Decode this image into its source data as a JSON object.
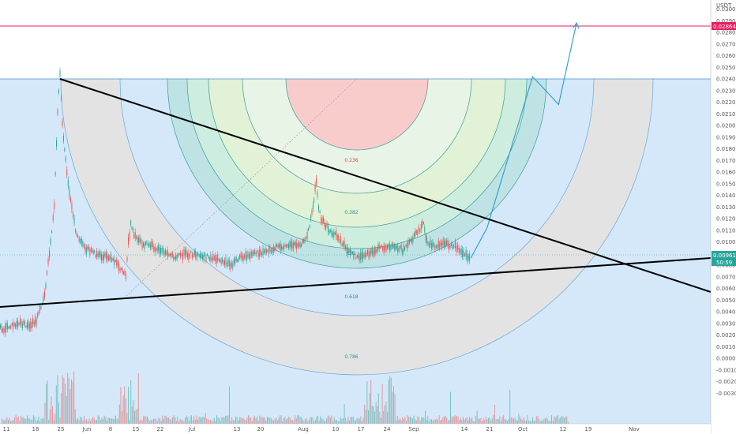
{
  "chart_data": {
    "type": "line",
    "currency_label": "USDT",
    "x_ticks": [
      "11",
      "18",
      "25",
      "Jun",
      "8",
      "15",
      "22",
      "Jul",
      "13",
      "20",
      "Aug",
      "10",
      "17",
      "24",
      "Sep",
      "14",
      "21",
      "Oct",
      "12",
      "19",
      "Nov"
    ],
    "y_ticks": [
      "0.030000",
      "0.029000",
      "0.028000",
      "0.027000",
      "0.026000",
      "0.025000",
      "0.024000",
      "0.023000",
      "0.022000",
      "0.021000",
      "0.020000",
      "0.019000",
      "0.018000",
      "0.017000",
      "0.016000",
      "0.015000",
      "0.014000",
      "0.013000",
      "0.012000",
      "0.011000",
      "0.010000",
      "0.009000",
      "0.008000",
      "0.007000",
      "0.006000",
      "0.005000",
      "0.004000",
      "0.003000",
      "0.002000",
      "0.001000",
      "0.000000",
      "-0.001000",
      "-0.002000",
      "-0.003000"
    ],
    "ylim": [
      -0.0035,
      0.0305
    ],
    "price_tag": "0.009613",
    "countdown_tag": "50:59",
    "target_tag": "0.028640",
    "fib_levels": [
      "0.236",
      "0.382",
      "0.5",
      "0.618",
      "0.786"
    ],
    "colors": {
      "candle_up": "#26a69a",
      "candle_down": "#ef5350",
      "target_line": "#e91e63",
      "projection": "#2a9bd4",
      "trendline": "#000000"
    },
    "price_path": [
      [
        0.0,
        0.0026
      ],
      [
        0.5,
        0.0025
      ],
      [
        1.0,
        0.0028
      ],
      [
        1.5,
        0.003
      ],
      [
        2.0,
        0.0028
      ],
      [
        2.5,
        0.0032
      ],
      [
        3.0,
        0.0055
      ],
      [
        3.3,
        0.009
      ],
      [
        3.6,
        0.013
      ],
      [
        3.8,
        0.021
      ],
      [
        3.95,
        0.0245
      ],
      [
        4.1,
        0.02
      ],
      [
        4.3,
        0.017
      ],
      [
        4.6,
        0.0135
      ],
      [
        4.9,
        0.011
      ],
      [
        5.2,
        0.01
      ],
      [
        5.5,
        0.0095
      ],
      [
        6.0,
        0.009
      ],
      [
        6.5,
        0.0088
      ],
      [
        7.0,
        0.0086
      ],
      [
        7.5,
        0.008
      ],
      [
        8.0,
        0.0072
      ],
      [
        8.15,
        0.01
      ],
      [
        8.3,
        0.0115
      ],
      [
        8.5,
        0.0105
      ],
      [
        9.0,
        0.0098
      ],
      [
        9.5,
        0.0097
      ],
      [
        10.0,
        0.0094
      ],
      [
        10.5,
        0.009
      ],
      [
        11.0,
        0.0088
      ],
      [
        11.5,
        0.0089
      ],
      [
        12.0,
        0.009
      ],
      [
        12.5,
        0.0088
      ],
      [
        13.0,
        0.0087
      ],
      [
        13.5,
        0.0086
      ],
      [
        14.0,
        0.0084
      ],
      [
        14.5,
        0.008
      ],
      [
        15.0,
        0.0087
      ],
      [
        15.5,
        0.0088
      ],
      [
        16.0,
        0.009
      ],
      [
        16.5,
        0.0092
      ],
      [
        17.0,
        0.0094
      ],
      [
        17.5,
        0.0096
      ],
      [
        18.0,
        0.0097
      ],
      [
        18.5,
        0.0098
      ],
      [
        19.0,
        0.01
      ],
      [
        19.3,
        0.0115
      ],
      [
        19.5,
        0.013
      ],
      [
        19.7,
        0.0152
      ],
      [
        19.85,
        0.013
      ],
      [
        20.0,
        0.012
      ],
      [
        20.5,
        0.011
      ],
      [
        21.0,
        0.0105
      ],
      [
        21.5,
        0.0095
      ],
      [
        22.0,
        0.0088
      ],
      [
        22.5,
        0.0087
      ],
      [
        23.0,
        0.009
      ],
      [
        23.5,
        0.0094
      ],
      [
        24.0,
        0.0096
      ],
      [
        24.5,
        0.0097
      ],
      [
        25.0,
        0.0093
      ],
      [
        25.5,
        0.01
      ],
      [
        26.0,
        0.011
      ],
      [
        26.3,
        0.0115
      ],
      [
        26.5,
        0.01
      ],
      [
        27.0,
        0.0096
      ],
      [
        27.5,
        0.0099
      ],
      [
        28.0,
        0.0097
      ],
      [
        28.4,
        0.0095
      ],
      [
        29.2,
        0.0086
      ]
    ],
    "projection_path": [
      [
        29.2,
        0.0086
      ],
      [
        30.2,
        0.0112
      ],
      [
        33.0,
        0.0242
      ],
      [
        34.6,
        0.0218
      ],
      [
        35.7,
        0.0288
      ]
    ]
  }
}
